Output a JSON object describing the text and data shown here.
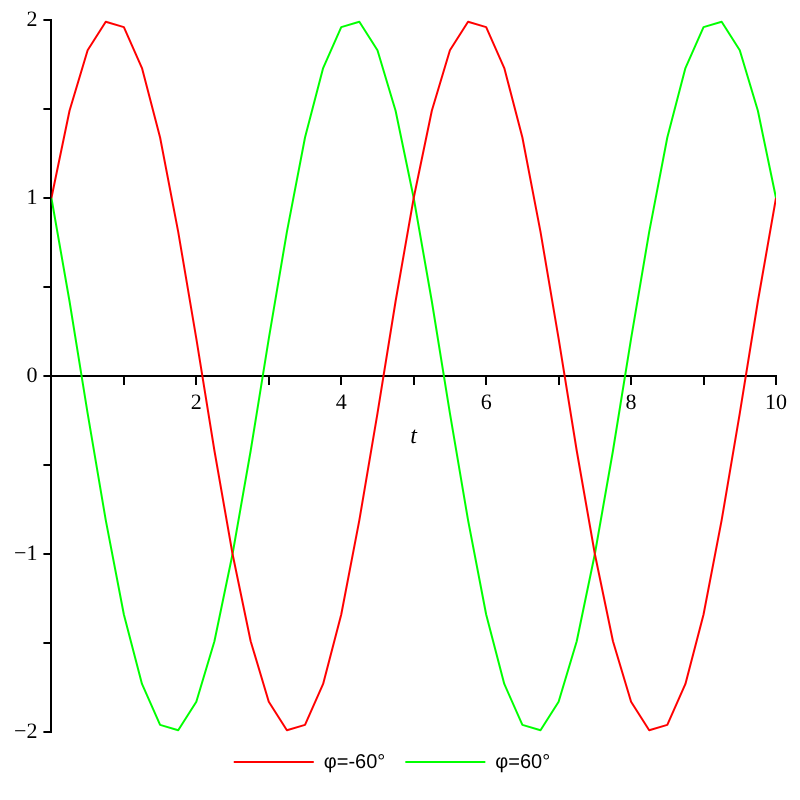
{
  "chart_data": {
    "type": "line",
    "xlabel": "t",
    "x": [
      0,
      0.25,
      0.5,
      0.75,
      1,
      1.25,
      1.5,
      1.75,
      2,
      2.25,
      2.5,
      2.75,
      3,
      3.25,
      3.5,
      3.75,
      4,
      4.25,
      4.5,
      4.75,
      5,
      5.25,
      5.5,
      5.75,
      6,
      6.25,
      6.5,
      6.75,
      7,
      7.25,
      7.5,
      7.75,
      8,
      8.25,
      8.5,
      8.75,
      9,
      9.25,
      9.5,
      9.75,
      10
    ],
    "series": [
      {
        "name": "φ=-60°",
        "color": "#ff0000",
        "values": [
          1,
          1.49,
          1.83,
          1.99,
          1.96,
          1.73,
          1.34,
          0.81,
          0.21,
          -0.42,
          -1,
          -1.49,
          -1.83,
          -1.99,
          -1.96,
          -1.73,
          -1.34,
          -0.81,
          -0.21,
          0.42,
          1,
          1.49,
          1.83,
          1.99,
          1.96,
          1.73,
          1.34,
          0.81,
          0.21,
          -0.42,
          -1,
          -1.49,
          -1.83,
          -1.99,
          -1.96,
          -1.73,
          -1.34,
          -0.81,
          -0.21,
          0.42,
          1
        ]
      },
      {
        "name": "φ=60°",
        "color": "#00ff00",
        "values": [
          1,
          0.42,
          -0.21,
          -0.81,
          -1.34,
          -1.73,
          -1.96,
          -1.99,
          -1.83,
          -1.49,
          -1,
          -0.42,
          0.21,
          0.81,
          1.34,
          1.73,
          1.96,
          1.99,
          1.83,
          1.49,
          1,
          0.42,
          -0.21,
          -0.81,
          -1.34,
          -1.73,
          -1.96,
          -1.99,
          -1.83,
          -1.49,
          -1,
          -0.42,
          0.21,
          0.81,
          1.34,
          1.73,
          1.96,
          1.99,
          1.83,
          1.49,
          1
        ]
      }
    ],
    "xlim": [
      0,
      10
    ],
    "ylim": [
      -2,
      2
    ],
    "xticks": [
      {
        "value": 1,
        "label": null
      },
      2,
      {
        "value": 3,
        "label": null
      },
      4,
      {
        "value": 5,
        "label": null
      },
      6,
      {
        "value": 7,
        "label": null
      },
      8,
      {
        "value": 9,
        "label": null
      },
      10
    ],
    "yticks": [
      -2,
      {
        "value": -1.5,
        "label": null
      },
      -1,
      {
        "value": -0.5,
        "label": null
      },
      0,
      {
        "value": 0.5,
        "label": null
      },
      1,
      {
        "value": 1.5,
        "label": null
      },
      2
    ],
    "grid": false,
    "legend": "bottom",
    "marker": "none",
    "line_style": "solid"
  }
}
